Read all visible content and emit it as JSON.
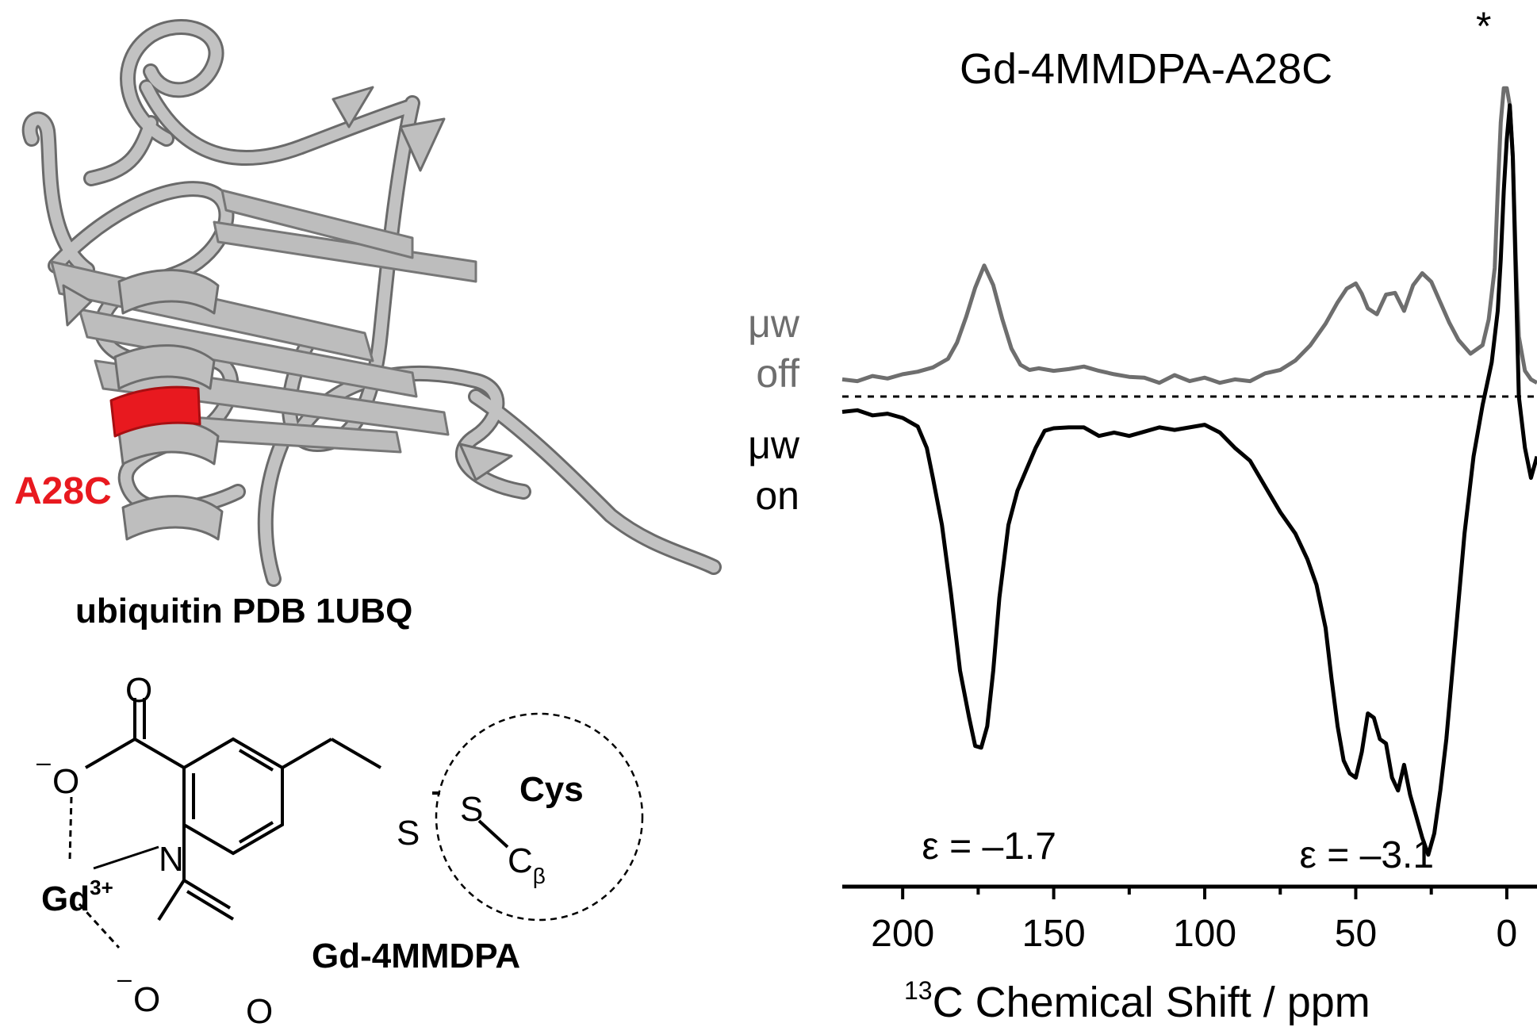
{
  "protein_panel": {
    "mutation_label": "A28C",
    "caption": "ubiquitin PDB 1UBQ",
    "highlight_color": "#e8191f",
    "ribbon_color": "#b4b4b4"
  },
  "structure_panel": {
    "atom_O_top": "O",
    "atom_O_left": "O",
    "anion_sign": "–",
    "atom_N": "N",
    "atom_S": "S",
    "atom_S2": "S",
    "atom_C": "C",
    "beta_sub": "β",
    "cys_label": "Cys",
    "metal": "Gd",
    "metal_charge": "3+",
    "ligand_name": "Gd-4MMDPA",
    "atom_O_bottom_left": "O",
    "atom_O_bottom_right": "O"
  },
  "chart_data": {
    "type": "line",
    "title": "Gd-4MMDPA-A28C",
    "xlabel_superscript": "13",
    "xlabel": "C Chemical Shift / ppm",
    "xlim": [
      220,
      -10
    ],
    "x_reversed": true,
    "xticks": [
      200,
      150,
      100,
      50,
      0
    ],
    "xtick_labels": [
      "200",
      "150",
      "100",
      "50",
      "0"
    ],
    "solvent_marker": "*",
    "series": [
      {
        "name_line1": "μw",
        "name_line2": "off",
        "color": "#6e6e6e",
        "x": [
          220,
          215,
          210,
          205,
          200,
          195,
          190,
          185,
          182,
          179,
          176,
          173,
          170,
          167,
          164,
          161,
          158,
          155,
          150,
          145,
          140,
          135,
          130,
          125,
          120,
          115,
          110,
          105,
          100,
          95,
          90,
          85,
          80,
          75,
          70,
          65,
          60,
          56,
          53,
          50,
          48,
          46,
          43,
          40,
          37,
          34,
          31,
          28,
          25,
          22,
          19,
          16,
          12,
          8,
          6,
          4,
          3,
          2,
          1,
          0,
          -1,
          -2,
          -3,
          -4,
          -6,
          -8,
          -10
        ],
        "y": [
          2.0,
          1.8,
          2.4,
          2.1,
          2.6,
          2.9,
          3.4,
          4.4,
          6.3,
          9.3,
          12.7,
          15.3,
          13.0,
          9.0,
          5.6,
          3.7,
          3.1,
          3.3,
          3.0,
          3.2,
          3.5,
          3.0,
          2.6,
          2.3,
          2.2,
          1.6,
          2.5,
          1.8,
          2.2,
          1.6,
          2.0,
          1.8,
          2.7,
          3.1,
          4.2,
          6.0,
          8.5,
          11.0,
          12.6,
          13.2,
          12.0,
          10.3,
          9.6,
          11.9,
          12.1,
          10.0,
          13.0,
          14.4,
          13.4,
          11.0,
          8.6,
          6.6,
          5.0,
          6.0,
          9.0,
          15.0,
          24.0,
          32.0,
          36.0,
          36.0,
          34.0,
          28.0,
          16.0,
          7.0,
          3.0,
          2.0,
          1.6
        ]
      },
      {
        "name_line1": "μw",
        "name_line2": "on",
        "color": "#000000",
        "x": [
          220,
          215,
          210,
          205,
          200,
          195,
          192,
          190,
          187,
          184,
          181,
          178,
          176,
          174,
          172,
          170,
          168,
          165,
          162,
          159,
          156,
          153,
          150,
          145,
          140,
          135,
          130,
          125,
          120,
          115,
          110,
          105,
          100,
          95,
          90,
          85,
          80,
          75,
          70,
          66,
          63,
          60,
          58,
          56,
          54,
          52,
          50,
          48,
          46,
          44,
          42,
          40,
          38,
          36,
          34,
          32,
          30,
          28,
          26,
          24,
          22,
          20,
          17,
          14,
          11,
          8,
          5,
          3,
          2,
          1,
          0,
          -1,
          -2,
          -3,
          -4,
          -6,
          -8,
          -10
        ],
        "y": [
          -1.8,
          -1.6,
          -2.2,
          -2.0,
          -2.5,
          -3.5,
          -6.0,
          -9.5,
          -15.0,
          -23.0,
          -32.0,
          -37.5,
          -40.8,
          -41.0,
          -38.5,
          -32.0,
          -23.5,
          -15.0,
          -11.0,
          -8.5,
          -6.0,
          -4.0,
          -3.7,
          -3.6,
          -3.6,
          -4.6,
          -4.2,
          -4.6,
          -4.1,
          -3.6,
          -3.9,
          -3.6,
          -3.3,
          -4.2,
          -6.0,
          -7.5,
          -10.5,
          -13.5,
          -16.0,
          -19.0,
          -22.0,
          -27.0,
          -33.0,
          -38.5,
          -42.5,
          -44.0,
          -44.5,
          -41.5,
          -37.0,
          -37.5,
          -40.0,
          -40.5,
          -44.5,
          -46.0,
          -43.0,
          -46.5,
          -49.0,
          -51.5,
          -53.5,
          -51.0,
          -46.0,
          -40.0,
          -28.0,
          -16.0,
          -7.0,
          -1.0,
          4.0,
          10.0,
          16.0,
          24.0,
          30.0,
          34.0,
          28.0,
          14.0,
          0.0,
          -6.0,
          -9.5,
          -7.0
        ]
      }
    ],
    "annotations": [
      {
        "text": "ε = –1.7",
        "x": 170,
        "y": -54
      },
      {
        "text": "ε = –3.1",
        "x": 45,
        "y": -55
      }
    ],
    "zero_line": "dashed"
  }
}
